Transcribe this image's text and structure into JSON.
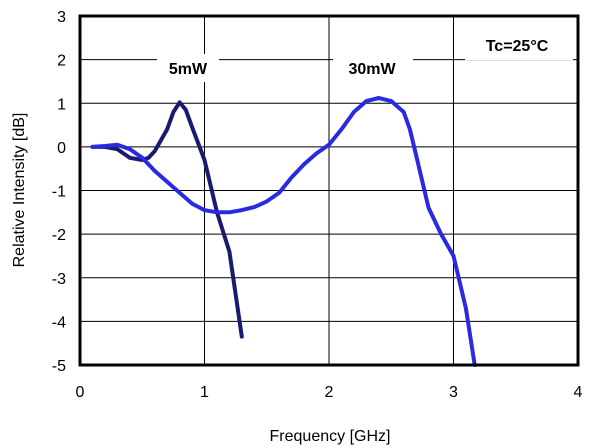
{
  "chart_data": {
    "type": "line",
    "xlabel": "Frequency [GHz]",
    "ylabel": "Relative Intensity [dB]",
    "xlim": [
      0,
      4
    ],
    "ylim": [
      -5,
      3
    ],
    "xticks": [
      "0",
      "1",
      "2",
      "3",
      "4"
    ],
    "yticks": [
      "3",
      "2",
      "1",
      "0",
      "-1",
      "-2",
      "-3",
      "-4",
      "-5"
    ],
    "grid": true,
    "annotations": {
      "temperature": "Tc=25°C",
      "series_a": "5mW",
      "series_b": "30mW"
    },
    "series": [
      {
        "name": "5mW",
        "color": "#1a1a6e",
        "points": [
          [
            0.1,
            0.0
          ],
          [
            0.2,
            0.0
          ],
          [
            0.3,
            -0.05
          ],
          [
            0.4,
            -0.25
          ],
          [
            0.5,
            -0.3
          ],
          [
            0.55,
            -0.25
          ],
          [
            0.6,
            -0.1
          ],
          [
            0.7,
            0.4
          ],
          [
            0.75,
            0.8
          ],
          [
            0.8,
            1.02
          ],
          [
            0.85,
            0.85
          ],
          [
            0.9,
            0.45
          ],
          [
            1.0,
            -0.3
          ],
          [
            1.1,
            -1.5
          ],
          [
            1.2,
            -2.4
          ],
          [
            1.3,
            -4.35
          ]
        ]
      },
      {
        "name": "30mW",
        "color": "#2a2ae0",
        "points": [
          [
            0.1,
            0.0
          ],
          [
            0.2,
            0.02
          ],
          [
            0.3,
            0.05
          ],
          [
            0.4,
            -0.05
          ],
          [
            0.5,
            -0.25
          ],
          [
            0.6,
            -0.55
          ],
          [
            0.7,
            -0.8
          ],
          [
            0.8,
            -1.05
          ],
          [
            0.9,
            -1.3
          ],
          [
            1.0,
            -1.45
          ],
          [
            1.1,
            -1.5
          ],
          [
            1.2,
            -1.5
          ],
          [
            1.3,
            -1.45
          ],
          [
            1.4,
            -1.38
          ],
          [
            1.5,
            -1.25
          ],
          [
            1.6,
            -1.05
          ],
          [
            1.7,
            -0.7
          ],
          [
            1.8,
            -0.4
          ],
          [
            1.9,
            -0.15
          ],
          [
            2.0,
            0.05
          ],
          [
            2.1,
            0.4
          ],
          [
            2.2,
            0.8
          ],
          [
            2.3,
            1.05
          ],
          [
            2.4,
            1.12
          ],
          [
            2.5,
            1.05
          ],
          [
            2.6,
            0.8
          ],
          [
            2.65,
            0.4
          ],
          [
            2.7,
            -0.2
          ],
          [
            2.8,
            -1.4
          ],
          [
            2.9,
            -2.0
          ],
          [
            3.0,
            -2.5
          ],
          [
            3.1,
            -3.7
          ],
          [
            3.17,
            -5.0
          ]
        ]
      }
    ]
  }
}
